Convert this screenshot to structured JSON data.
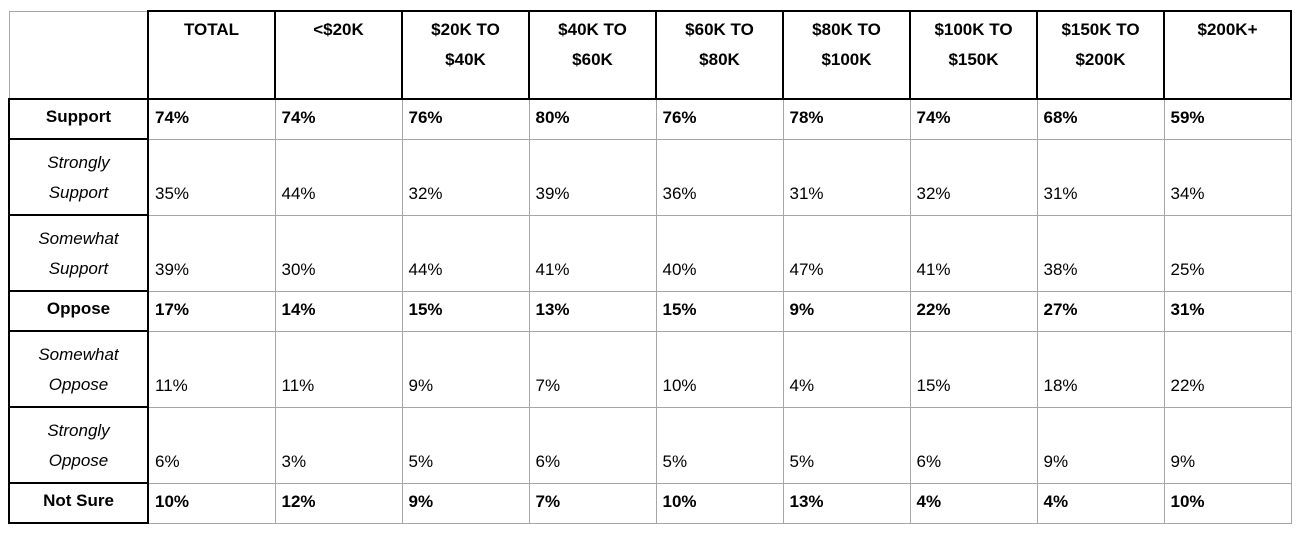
{
  "colors": {
    "background": "#ffffff",
    "text": "#000000",
    "border_strong": "#000000",
    "border_light": "#a6a6a6"
  },
  "table": {
    "corner_label": "",
    "columns": [
      {
        "label": "TOTAL",
        "lines": [
          "TOTAL"
        ]
      },
      {
        "label": "<$20K",
        "lines": [
          "<$20K"
        ]
      },
      {
        "label": "$20K TO $40K",
        "lines": [
          "$20K TO",
          "$40K"
        ]
      },
      {
        "label": "$40K TO $60K",
        "lines": [
          "$40K TO",
          "$60K"
        ]
      },
      {
        "label": "$60K TO $80K",
        "lines": [
          "$60K TO",
          "$80K"
        ]
      },
      {
        "label": "$80K TO $100K",
        "lines": [
          "$80K TO",
          "$100K"
        ]
      },
      {
        "label": "$100K TO $150K",
        "lines": [
          "$100K TO",
          "$150K"
        ]
      },
      {
        "label": "$150K TO $200K",
        "lines": [
          "$150K TO",
          "$200K"
        ]
      },
      {
        "label": "$200K+",
        "lines": [
          "$200K+"
        ]
      }
    ],
    "rows": [
      {
        "label": "Support",
        "lines": [
          "Support"
        ],
        "emphasis": "bold",
        "values": [
          "74%",
          "74%",
          "76%",
          "80%",
          "76%",
          "78%",
          "74%",
          "68%",
          "59%"
        ]
      },
      {
        "label": "Strongly Support",
        "lines": [
          "Strongly",
          "Support"
        ],
        "emphasis": "italic",
        "values": [
          "35%",
          "44%",
          "32%",
          "39%",
          "36%",
          "31%",
          "32%",
          "31%",
          "34%"
        ]
      },
      {
        "label": "Somewhat Support",
        "lines": [
          "Somewhat",
          "Support"
        ],
        "emphasis": "italic",
        "values": [
          "39%",
          "30%",
          "44%",
          "41%",
          "40%",
          "47%",
          "41%",
          "38%",
          "25%"
        ]
      },
      {
        "label": "Oppose",
        "lines": [
          "Oppose"
        ],
        "emphasis": "bold",
        "values": [
          "17%",
          "14%",
          "15%",
          "13%",
          "15%",
          "9%",
          "22%",
          "27%",
          "31%"
        ]
      },
      {
        "label": "Somewhat Oppose",
        "lines": [
          "Somewhat",
          "Oppose"
        ],
        "emphasis": "italic",
        "values": [
          "11%",
          "11%",
          "9%",
          "7%",
          "10%",
          "4%",
          "15%",
          "18%",
          "22%"
        ]
      },
      {
        "label": "Strongly Oppose",
        "lines": [
          "Strongly",
          "Oppose"
        ],
        "emphasis": "italic",
        "values": [
          "6%",
          "3%",
          "5%",
          "6%",
          "5%",
          "5%",
          "6%",
          "9%",
          "9%"
        ]
      },
      {
        "label": "Not Sure",
        "lines": [
          "Not Sure"
        ],
        "emphasis": "bold",
        "values": [
          "10%",
          "12%",
          "9%",
          "7%",
          "10%",
          "13%",
          "4%",
          "4%",
          "10%"
        ]
      }
    ]
  },
  "chart_data": {
    "type": "table",
    "columns": [
      "",
      "TOTAL",
      "<$20K",
      "$20K TO $40K",
      "$40K TO $60K",
      "$60K TO $80K",
      "$80K TO $100K",
      "$100K TO $150K",
      "$150K TO $200K",
      "$200K+"
    ],
    "rows": [
      [
        "Support",
        "74%",
        "74%",
        "76%",
        "80%",
        "76%",
        "78%",
        "74%",
        "68%",
        "59%"
      ],
      [
        "Strongly Support",
        "35%",
        "44%",
        "32%",
        "39%",
        "36%",
        "31%",
        "32%",
        "31%",
        "34%"
      ],
      [
        "Somewhat Support",
        "39%",
        "30%",
        "44%",
        "41%",
        "40%",
        "47%",
        "41%",
        "38%",
        "25%"
      ],
      [
        "Oppose",
        "17%",
        "14%",
        "15%",
        "13%",
        "15%",
        "9%",
        "22%",
        "27%",
        "31%"
      ],
      [
        "Somewhat Oppose",
        "11%",
        "11%",
        "9%",
        "7%",
        "10%",
        "4%",
        "15%",
        "18%",
        "22%"
      ],
      [
        "Strongly Oppose",
        "6%",
        "3%",
        "5%",
        "6%",
        "5%",
        "5%",
        "6%",
        "9%",
        "9%"
      ],
      [
        "Not Sure",
        "10%",
        "12%",
        "9%",
        "7%",
        "10%",
        "13%",
        "4%",
        "4%",
        "10%"
      ]
    ]
  }
}
